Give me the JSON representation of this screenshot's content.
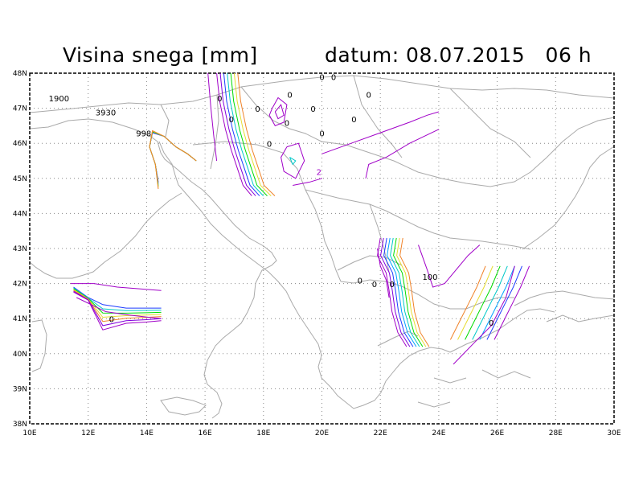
{
  "title": {
    "left": "Visina snega [mm]",
    "right": "datum: 08.07.2015   06 h"
  },
  "axes": {
    "x_ticks": [
      "10E",
      "12E",
      "14E",
      "16E",
      "18E",
      "20E",
      "22E",
      "24E",
      "26E",
      "28E",
      "30E"
    ],
    "y_ticks": [
      "48N",
      "47N",
      "46N",
      "45N",
      "44N",
      "43N",
      "42N",
      "41N",
      "40N",
      "39N",
      "38N"
    ],
    "lon_range": [
      10,
      30
    ],
    "lat_range": [
      38,
      48
    ],
    "grid": "dotted"
  },
  "labels": [
    {
      "text": "1900",
      "lon": 11.0,
      "lat": 47.2
    },
    {
      "text": "3930",
      "lon": 12.6,
      "lat": 46.8
    },
    {
      "text": "998",
      "lon": 13.9,
      "lat": 46.2
    },
    {
      "text": "0",
      "lon": 20.0,
      "lat": 47.8
    },
    {
      "text": "0",
      "lon": 20.4,
      "lat": 47.8
    },
    {
      "text": "0",
      "lon": 18.9,
      "lat": 47.3
    },
    {
      "text": "0",
      "lon": 21.6,
      "lat": 47.3
    },
    {
      "text": "0",
      "lon": 16.5,
      "lat": 47.2
    },
    {
      "text": "0",
      "lon": 17.8,
      "lat": 46.9
    },
    {
      "text": "0",
      "lon": 19.7,
      "lat": 46.9
    },
    {
      "text": "0",
      "lon": 16.9,
      "lat": 46.6
    },
    {
      "text": "0",
      "lon": 18.8,
      "lat": 46.5
    },
    {
      "text": "0",
      "lon": 21.1,
      "lat": 46.6
    },
    {
      "text": "0",
      "lon": 20.0,
      "lat": 46.2
    },
    {
      "text": "0",
      "lon": 18.2,
      "lat": 45.9
    },
    {
      "text": "100",
      "lon": 23.7,
      "lat": 42.1
    },
    {
      "text": "0",
      "lon": 21.3,
      "lat": 42.0
    },
    {
      "text": "0",
      "lon": 21.8,
      "lat": 41.9
    },
    {
      "text": "0",
      "lon": 22.4,
      "lat": 41.9
    },
    {
      "text": "0",
      "lon": 12.8,
      "lat": 40.9
    },
    {
      "text": "0",
      "lon": 25.8,
      "lat": 40.8
    },
    {
      "text": "2",
      "lon": 19.9,
      "lat": 45.1
    }
  ],
  "colors": {
    "coast": "#aaaaaa",
    "grid": "#888888",
    "contours": [
      "#a000c8",
      "#8200dc",
      "#1e3cff",
      "#00a0ff",
      "#00c8c8",
      "#00dc00",
      "#a0e632",
      "#e6dc32",
      "#e6af2d",
      "#f08228"
    ]
  }
}
